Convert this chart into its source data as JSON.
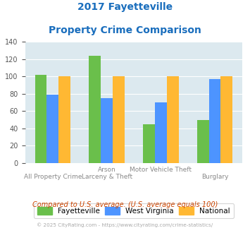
{
  "title_line1": "2017 Fayetteville",
  "title_line2": "Property Crime Comparison",
  "fayetteville": [
    102,
    124,
    45,
    50
  ],
  "west_virginia": [
    79,
    75,
    70,
    97
  ],
  "national": [
    100,
    100,
    100,
    100
  ],
  "color_fayetteville": "#6abf4b",
  "color_west_virginia": "#4d94ff",
  "color_national": "#ffb833",
  "ylim": [
    0,
    140
  ],
  "yticks": [
    0,
    20,
    40,
    60,
    80,
    100,
    120,
    140
  ],
  "title_color": "#1a6ebd",
  "subtitle_note": "Compared to U.S. average. (U.S. average equals 100)",
  "copyright": "© 2025 CityRating.com - https://www.cityrating.com/crime-statistics/",
  "bg_color": "#dce9ef",
  "legend_labels": [
    "Fayetteville",
    "West Virginia",
    "National"
  ],
  "top_labels": [
    "",
    "Arson",
    "Motor Vehicle Theft",
    ""
  ],
  "bottom_labels": [
    "All Property Crime",
    "Larceny & Theft",
    "",
    "Burglary"
  ],
  "bar_width": 0.22
}
